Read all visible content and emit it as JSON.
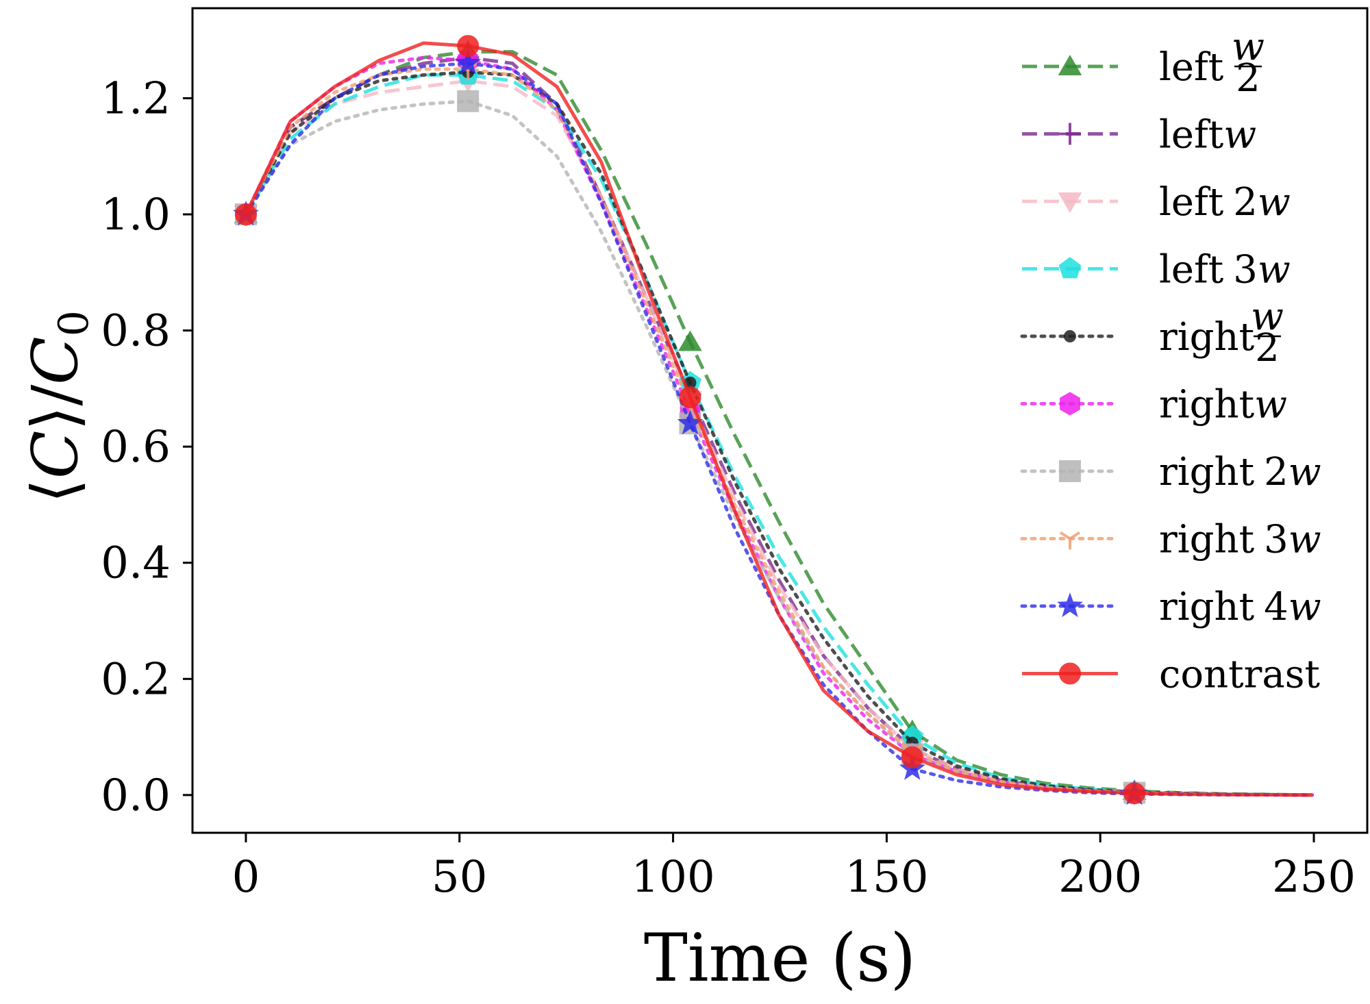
{
  "chart_data": {
    "type": "line",
    "title": "",
    "xlabel": "Time (s)",
    "ylabel_parts": {
      "open": "⟨",
      "var": "C",
      "close": "⟩",
      "slash": "/",
      "denom": "C",
      "denom_sub": "0"
    },
    "xlim": [
      -12.5,
      262.5
    ],
    "ylim": [
      -0.065,
      1.355
    ],
    "x_ticks": [
      0,
      50,
      100,
      150,
      200,
      250
    ],
    "x_tick_labels": [
      "0",
      "50",
      "100",
      "150",
      "200",
      "250"
    ],
    "y_ticks": [
      0.0,
      0.2,
      0.4,
      0.6,
      0.8,
      1.0,
      1.2
    ],
    "y_tick_labels": [
      "0.0",
      "0.2",
      "0.4",
      "0.6",
      "0.8",
      "1.0",
      "1.2"
    ],
    "legend_position": "top-right",
    "x": [
      0,
      10.4,
      20.8,
      31.2,
      41.6,
      52,
      62.4,
      72.8,
      83.2,
      93.6,
      104,
      114.4,
      124.8,
      135.2,
      145.6,
      156,
      166.4,
      176.8,
      187.2,
      197.6,
      208,
      218.4,
      228.8,
      239.2,
      249.6
    ],
    "marker_every": 5,
    "series": [
      {
        "name": "left",
        "suffix": "w/2",
        "color": "#2e8b2e",
        "dash": "dashed",
        "marker": "triangle-up",
        "values": [
          1.0,
          1.15,
          1.2,
          1.24,
          1.27,
          1.28,
          1.28,
          1.24,
          1.11,
          0.95,
          0.78,
          0.62,
          0.47,
          0.33,
          0.22,
          0.11,
          0.06,
          0.035,
          0.02,
          0.012,
          0.007,
          0.004,
          0.002,
          0.001,
          0.0
        ]
      },
      {
        "name": "left",
        "suffix": "w",
        "color": "#7b2a8f",
        "dash": "dashed",
        "marker": "plus",
        "values": [
          1.0,
          1.15,
          1.2,
          1.24,
          1.26,
          1.27,
          1.26,
          1.19,
          1.03,
          0.86,
          0.69,
          0.52,
          0.37,
          0.24,
          0.15,
          0.08,
          0.045,
          0.025,
          0.014,
          0.008,
          0.004,
          0.002,
          0.001,
          0.0005,
          0.0
        ]
      },
      {
        "name": "left",
        "suffix": "2w",
        "color": "#f5b8c4",
        "dash": "dashed",
        "marker": "triangle-down",
        "values": [
          1.0,
          1.14,
          1.19,
          1.21,
          1.22,
          1.23,
          1.22,
          1.17,
          1.03,
          0.86,
          0.68,
          0.51,
          0.36,
          0.24,
          0.15,
          0.08,
          0.045,
          0.025,
          0.014,
          0.008,
          0.004,
          0.002,
          0.001,
          0.0005,
          0.0
        ]
      },
      {
        "name": "left",
        "suffix": "3w",
        "color": "#1ee0e0",
        "dash": "dashed",
        "marker": "pentagon",
        "values": [
          1.0,
          1.13,
          1.19,
          1.22,
          1.24,
          1.24,
          1.23,
          1.18,
          1.06,
          0.89,
          0.71,
          0.55,
          0.41,
          0.29,
          0.19,
          0.1,
          0.055,
          0.03,
          0.017,
          0.01,
          0.005,
          0.003,
          0.0015,
          0.0007,
          0.0
        ]
      },
      {
        "name": "right",
        "suffix": "w/2",
        "color": "#222222",
        "dash": "dotted",
        "marker": "circle-small",
        "values": [
          1.0,
          1.14,
          1.2,
          1.23,
          1.24,
          1.245,
          1.24,
          1.19,
          1.07,
          0.89,
          0.71,
          0.54,
          0.39,
          0.27,
          0.17,
          0.09,
          0.05,
          0.028,
          0.016,
          0.009,
          0.005,
          0.003,
          0.0015,
          0.0007,
          0.0
        ]
      },
      {
        "name": "right",
        "suffix": "w",
        "color": "#ee22ee",
        "dash": "dotted",
        "marker": "hexagon",
        "values": [
          1.0,
          1.16,
          1.22,
          1.26,
          1.27,
          1.265,
          1.25,
          1.18,
          1.02,
          0.84,
          0.66,
          0.49,
          0.34,
          0.21,
          0.13,
          0.07,
          0.04,
          0.022,
          0.012,
          0.007,
          0.004,
          0.002,
          0.001,
          0.0005,
          0.0
        ]
      },
      {
        "name": "right",
        "suffix": "2w",
        "color": "#b4b4b4",
        "dash": "dotted",
        "marker": "square",
        "values": [
          1.0,
          1.12,
          1.16,
          1.18,
          1.19,
          1.195,
          1.17,
          1.1,
          0.97,
          0.81,
          0.64,
          0.48,
          0.34,
          0.22,
          0.14,
          0.07,
          0.04,
          0.022,
          0.012,
          0.007,
          0.004,
          0.002,
          0.001,
          0.0005,
          0.0
        ]
      },
      {
        "name": "right",
        "suffix": "3w",
        "color": "#f0a070",
        "dash": "dotted",
        "marker": "tri-down",
        "values": [
          1.0,
          1.15,
          1.21,
          1.24,
          1.25,
          1.25,
          1.24,
          1.18,
          1.03,
          0.85,
          0.67,
          0.5,
          0.35,
          0.22,
          0.14,
          0.075,
          0.042,
          0.023,
          0.013,
          0.007,
          0.004,
          0.002,
          0.001,
          0.0005,
          0.0
        ]
      },
      {
        "name": "right",
        "suffix": "4w",
        "color": "#2e2ee8",
        "dash": "dotted",
        "marker": "star",
        "values": [
          1.0,
          1.12,
          1.2,
          1.24,
          1.255,
          1.26,
          1.25,
          1.19,
          1.02,
          0.83,
          0.64,
          0.46,
          0.31,
          0.19,
          0.11,
          0.045,
          0.025,
          0.014,
          0.008,
          0.004,
          0.002,
          0.001,
          0.0005,
          0.0002,
          0.0
        ]
      },
      {
        "name": "contrast",
        "suffix": "",
        "color": "#f02020",
        "dash": "solid",
        "marker": "circle",
        "values": [
          1.0,
          1.16,
          1.22,
          1.265,
          1.295,
          1.29,
          1.275,
          1.22,
          1.09,
          0.88,
          0.685,
          0.49,
          0.31,
          0.18,
          0.11,
          0.065,
          0.035,
          0.018,
          0.01,
          0.006,
          0.003,
          0.0015,
          0.0008,
          0.0004,
          0.0
        ]
      }
    ]
  }
}
